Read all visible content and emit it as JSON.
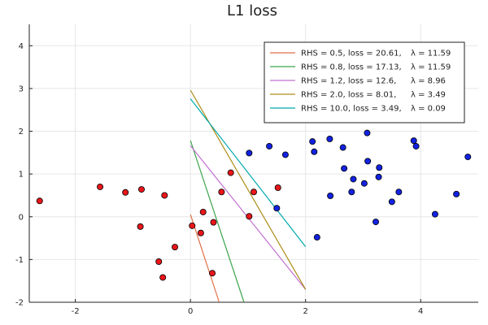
{
  "chart_data": {
    "type": "scatter",
    "title": "L1 loss",
    "xlabel": "",
    "ylabel": "",
    "xlim": [
      -2.8,
      5.0
    ],
    "ylim": [
      -2.0,
      4.5
    ],
    "xticks": [
      -2,
      0,
      2,
      4
    ],
    "yticks": [
      -2,
      -1,
      0,
      1,
      2,
      3,
      4
    ],
    "xtick_labels": [
      "-2",
      "0",
      "2",
      "4"
    ],
    "ytick_labels": [
      "-2",
      "-1",
      "0",
      "1",
      "2",
      "3",
      "4"
    ],
    "grid": true,
    "legend_position": "top-right",
    "colors": {
      "red_points": "#e8161b",
      "blue_points": "#1222e0",
      "series_0_5": "#e26f46",
      "series_0_8": "#3da44d",
      "series_1_2": "#c271d2",
      "series_2_0": "#ac8d18",
      "series_10_0": "#00a9ad",
      "grid": "#e6e6e6",
      "axis": "#222222"
    },
    "red_points": [
      [
        -2.62,
        0.37
      ],
      [
        -1.57,
        0.7
      ],
      [
        -1.13,
        0.57
      ],
      [
        -0.85,
        0.64
      ],
      [
        -0.45,
        0.5
      ],
      [
        -0.87,
        -0.23
      ],
      [
        -0.55,
        -1.05
      ],
      [
        -0.48,
        -1.42
      ],
      [
        -0.27,
        -0.71
      ],
      [
        0.03,
        -0.21
      ],
      [
        0.18,
        -0.38
      ],
      [
        0.22,
        0.11
      ],
      [
        0.4,
        -0.13
      ],
      [
        0.38,
        -1.32
      ],
      [
        0.54,
        0.58
      ],
      [
        0.7,
        1.03
      ],
      [
        1.02,
        0.01
      ],
      [
        1.1,
        0.58
      ],
      [
        1.52,
        0.68
      ]
    ],
    "blue_points": [
      [
        1.02,
        1.49
      ],
      [
        1.37,
        1.65
      ],
      [
        1.65,
        1.45
      ],
      [
        1.5,
        0.2
      ],
      [
        2.12,
        1.76
      ],
      [
        2.15,
        1.52
      ],
      [
        2.2,
        -0.48
      ],
      [
        2.42,
        1.82
      ],
      [
        2.43,
        0.49
      ],
      [
        2.65,
        1.62
      ],
      [
        2.67,
        1.13
      ],
      [
        2.8,
        0.58
      ],
      [
        2.83,
        0.88
      ],
      [
        3.02,
        0.78
      ],
      [
        3.07,
        1.96
      ],
      [
        3.08,
        1.3
      ],
      [
        3.27,
        0.93
      ],
      [
        3.28,
        1.15
      ],
      [
        3.22,
        -0.12
      ],
      [
        3.5,
        0.35
      ],
      [
        3.62,
        0.58
      ],
      [
        3.88,
        1.78
      ],
      [
        3.92,
        1.65
      ],
      [
        4.25,
        0.06
      ],
      [
        4.62,
        0.53
      ],
      [
        4.82,
        1.4
      ]
    ],
    "series": [
      {
        "name": "RHS = 0.5, loss = 20.61,",
        "lambda_label": "λ = 11.59",
        "color_key": "series_0_5",
        "x": [
          0.0,
          0.5
        ],
        "y": [
          0.05,
          -2.0
        ]
      },
      {
        "name": "RHS = 0.8, loss = 17.13,",
        "lambda_label": "λ = 11.59",
        "color_key": "series_0_8",
        "x": [
          0.0,
          0.93
        ],
        "y": [
          1.78,
          -2.0
        ]
      },
      {
        "name": "RHS = 1.2, loss = 12.6,",
        "lambda_label": "λ = 8.96",
        "color_key": "series_1_2",
        "x": [
          0.0,
          2.0
        ],
        "y": [
          1.66,
          -1.7
        ]
      },
      {
        "name": "RHS = 2.0, loss = 8.01,",
        "lambda_label": "λ = 3.49",
        "color_key": "series_2_0",
        "x": [
          0.0,
          2.0
        ],
        "y": [
          2.96,
          -1.7
        ]
      },
      {
        "name": "RHS = 10.0, loss = 3.49,",
        "lambda_label": "λ = 0.09",
        "color_key": "series_10_0",
        "x": [
          0.0,
          2.0
        ],
        "y": [
          2.76,
          -0.7
        ]
      }
    ]
  }
}
